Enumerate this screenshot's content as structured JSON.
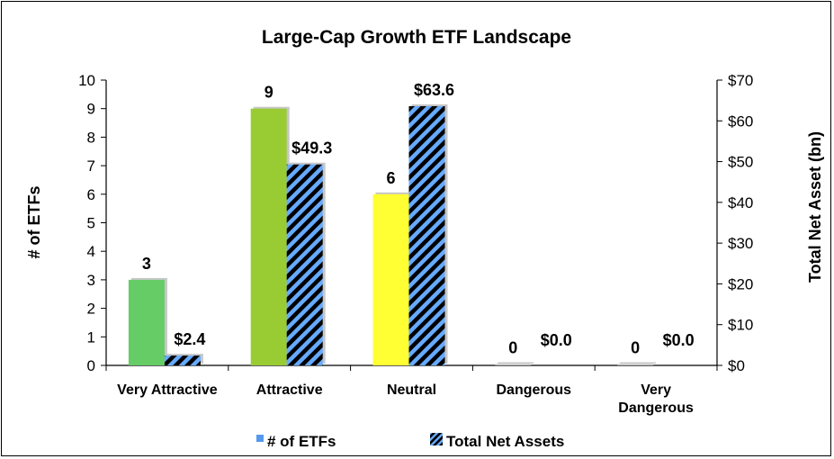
{
  "chart_data": {
    "type": "bar",
    "title": "Large-Cap Growth ETF Landscape",
    "categories": [
      "Very Attractive",
      "Attractive",
      "Neutral",
      "Dangerous",
      "Very Dangerous"
    ],
    "category_lines": [
      [
        "Very Attractive"
      ],
      [
        "Attractive"
      ],
      [
        "Neutral"
      ],
      [
        "Dangerous"
      ],
      [
        "Very",
        "Dangerous"
      ]
    ],
    "series": [
      {
        "name": "# of ETFs",
        "axis": "left",
        "values": [
          3,
          9,
          6,
          0,
          0
        ],
        "labels": [
          "3",
          "9",
          "6",
          "0",
          "0"
        ],
        "colors": [
          "#66cc66",
          "#99cc33",
          "#ffff33",
          "#bbbbbb",
          "#bbbbbb"
        ],
        "legend_color": "#5599ee"
      },
      {
        "name": "Total Net Assets",
        "axis": "right",
        "values": [
          2.4,
          49.3,
          63.6,
          0.0,
          0.0
        ],
        "labels": [
          "$2.4",
          "$49.3",
          "$63.6",
          "$0.0",
          "$0.0"
        ],
        "pattern_colors": [
          "#66aaff",
          "#000000"
        ]
      }
    ],
    "ylabel": "# of ETFs",
    "y2label": "Total Net Asset (bn)",
    "ylim": [
      0,
      10
    ],
    "y2lim": [
      0,
      70
    ],
    "yticks": [
      "0",
      "1",
      "2",
      "3",
      "4",
      "5",
      "6",
      "7",
      "8",
      "9",
      "10"
    ],
    "y2ticks": [
      "$0",
      "$10",
      "$20",
      "$30",
      "$40",
      "$50",
      "$60",
      "$70"
    ],
    "legend_position": "bottom",
    "grid": false
  }
}
